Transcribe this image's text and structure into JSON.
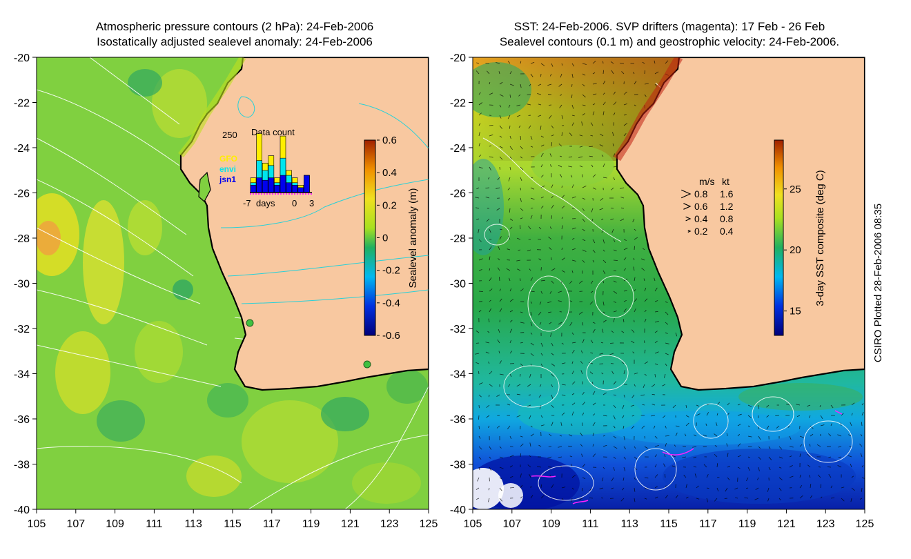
{
  "left_panel": {
    "title_line1": "Atmospheric pressure contours (2 hPa): 24-Feb-2006",
    "title_line2": "Isostatically adjusted sealevel anomaly: 24-Feb-2006",
    "colorbar": {
      "label": "Sealevel anomaly (m)",
      "ticks": [
        "0.6",
        "0.4",
        "0.2",
        "0",
        "-0.2",
        "-0.4",
        "-0.6"
      ],
      "tick_values": [
        0.6,
        0.4,
        0.2,
        0,
        -0.2,
        -0.4,
        -0.6
      ],
      "range": [
        -0.6,
        0.6
      ]
    },
    "inset": {
      "title": "Data count",
      "ymax_label": "250",
      "legend": [
        {
          "name": "GFO",
          "color": "#ffee00"
        },
        {
          "name": "envi",
          "color": "#00e5ee"
        },
        {
          "name": "jsn1",
          "color": "#0000ee"
        }
      ],
      "xlabel_left": "-7",
      "xlabel_mid": "days",
      "xlabel_zero": "0",
      "xlabel_right": "3",
      "bars_total": [
        60,
        240,
        120,
        150,
        60,
        230,
        90,
        60,
        30,
        70
      ],
      "bars_envi": [
        40,
        130,
        90,
        110,
        40,
        140,
        70,
        40,
        20,
        70
      ],
      "bars_jsn1": [
        30,
        60,
        50,
        60,
        30,
        70,
        40,
        30,
        20,
        70
      ],
      "ymax": 250
    }
  },
  "right_panel": {
    "title_line1": "SST: 24-Feb-2006. SVP drifters (magenta): 17 Feb - 26 Feb",
    "title_line2": "Sealevel contours (0.1 m) and geostrophic velocity: 24-Feb-2006.",
    "colorbar": {
      "label": "3-day SST composite (deg C)",
      "ticks": [
        "25",
        "20",
        "15"
      ],
      "tick_values": [
        25,
        20,
        15
      ],
      "range": [
        13,
        29
      ]
    },
    "velocity_legend": {
      "header_ms": "m/s",
      "header_kt": "kt",
      "rows": [
        {
          "ms": "0.8",
          "kt": "1.6",
          "value": 0.8
        },
        {
          "ms": "0.6",
          "kt": "1.2",
          "value": 0.6
        },
        {
          "ms": "0.4",
          "kt": "0.8",
          "value": 0.4
        },
        {
          "ms": "0.2",
          "kt": "0.4",
          "value": 0.2
        }
      ]
    }
  },
  "axes": {
    "lat_labels": [
      "-20",
      "-22",
      "-24",
      "-26",
      "-28",
      "-30",
      "-32",
      "-34",
      "-36",
      "-38",
      "-40"
    ],
    "lat_values": [
      -20,
      -22,
      -24,
      -26,
      -28,
      -30,
      -32,
      -34,
      -36,
      -38,
      -40
    ],
    "lon_labels": [
      "105",
      "107",
      "109",
      "111",
      "113",
      "115",
      "117",
      "119",
      "121",
      "123",
      "125"
    ],
    "lon_values": [
      105,
      107,
      109,
      111,
      113,
      115,
      117,
      119,
      121,
      123,
      125
    ]
  },
  "credit": "CSIRO Plotted 28-Feb-2006 08:35",
  "colors": {
    "land": "#f8c8a0",
    "coast": "#000000",
    "contour_white": "#ffffff",
    "contour_cyan": "#28d0d8",
    "drifter": "#ff20ff",
    "marker": "#40c040"
  }
}
